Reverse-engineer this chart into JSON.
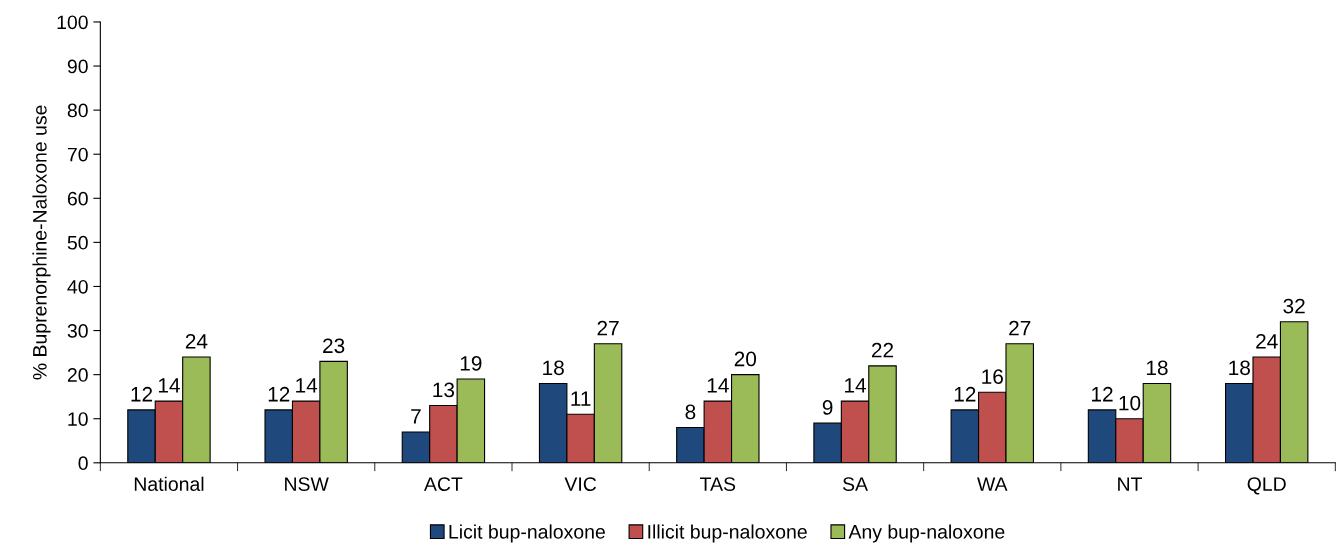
{
  "chart_data": {
    "type": "bar",
    "ylabel": "% Buprenorphine-Naloxone use",
    "categories": [
      "National",
      "NSW",
      "ACT",
      "VIC",
      "TAS",
      "SA",
      "WA",
      "NT",
      "QLD"
    ],
    "series": [
      {
        "name": "Licit bup-naloxone",
        "color": "#1f497d",
        "values": [
          12,
          12,
          7,
          18,
          8,
          9,
          12,
          12,
          18
        ]
      },
      {
        "name": "Illicit bup-naloxone",
        "color": "#c0504d",
        "values": [
          14,
          14,
          13,
          11,
          14,
          14,
          16,
          10,
          24
        ]
      },
      {
        "name": "Any bup-naloxone",
        "color": "#9bbb59",
        "values": [
          24,
          23,
          19,
          27,
          20,
          22,
          27,
          18,
          32
        ]
      }
    ],
    "ylim": [
      0,
      100
    ],
    "yticks": [
      0,
      10,
      20,
      30,
      40,
      50,
      60,
      70,
      80,
      90,
      100
    ],
    "data_labels": true,
    "grid": false,
    "legend": "bottom"
  }
}
